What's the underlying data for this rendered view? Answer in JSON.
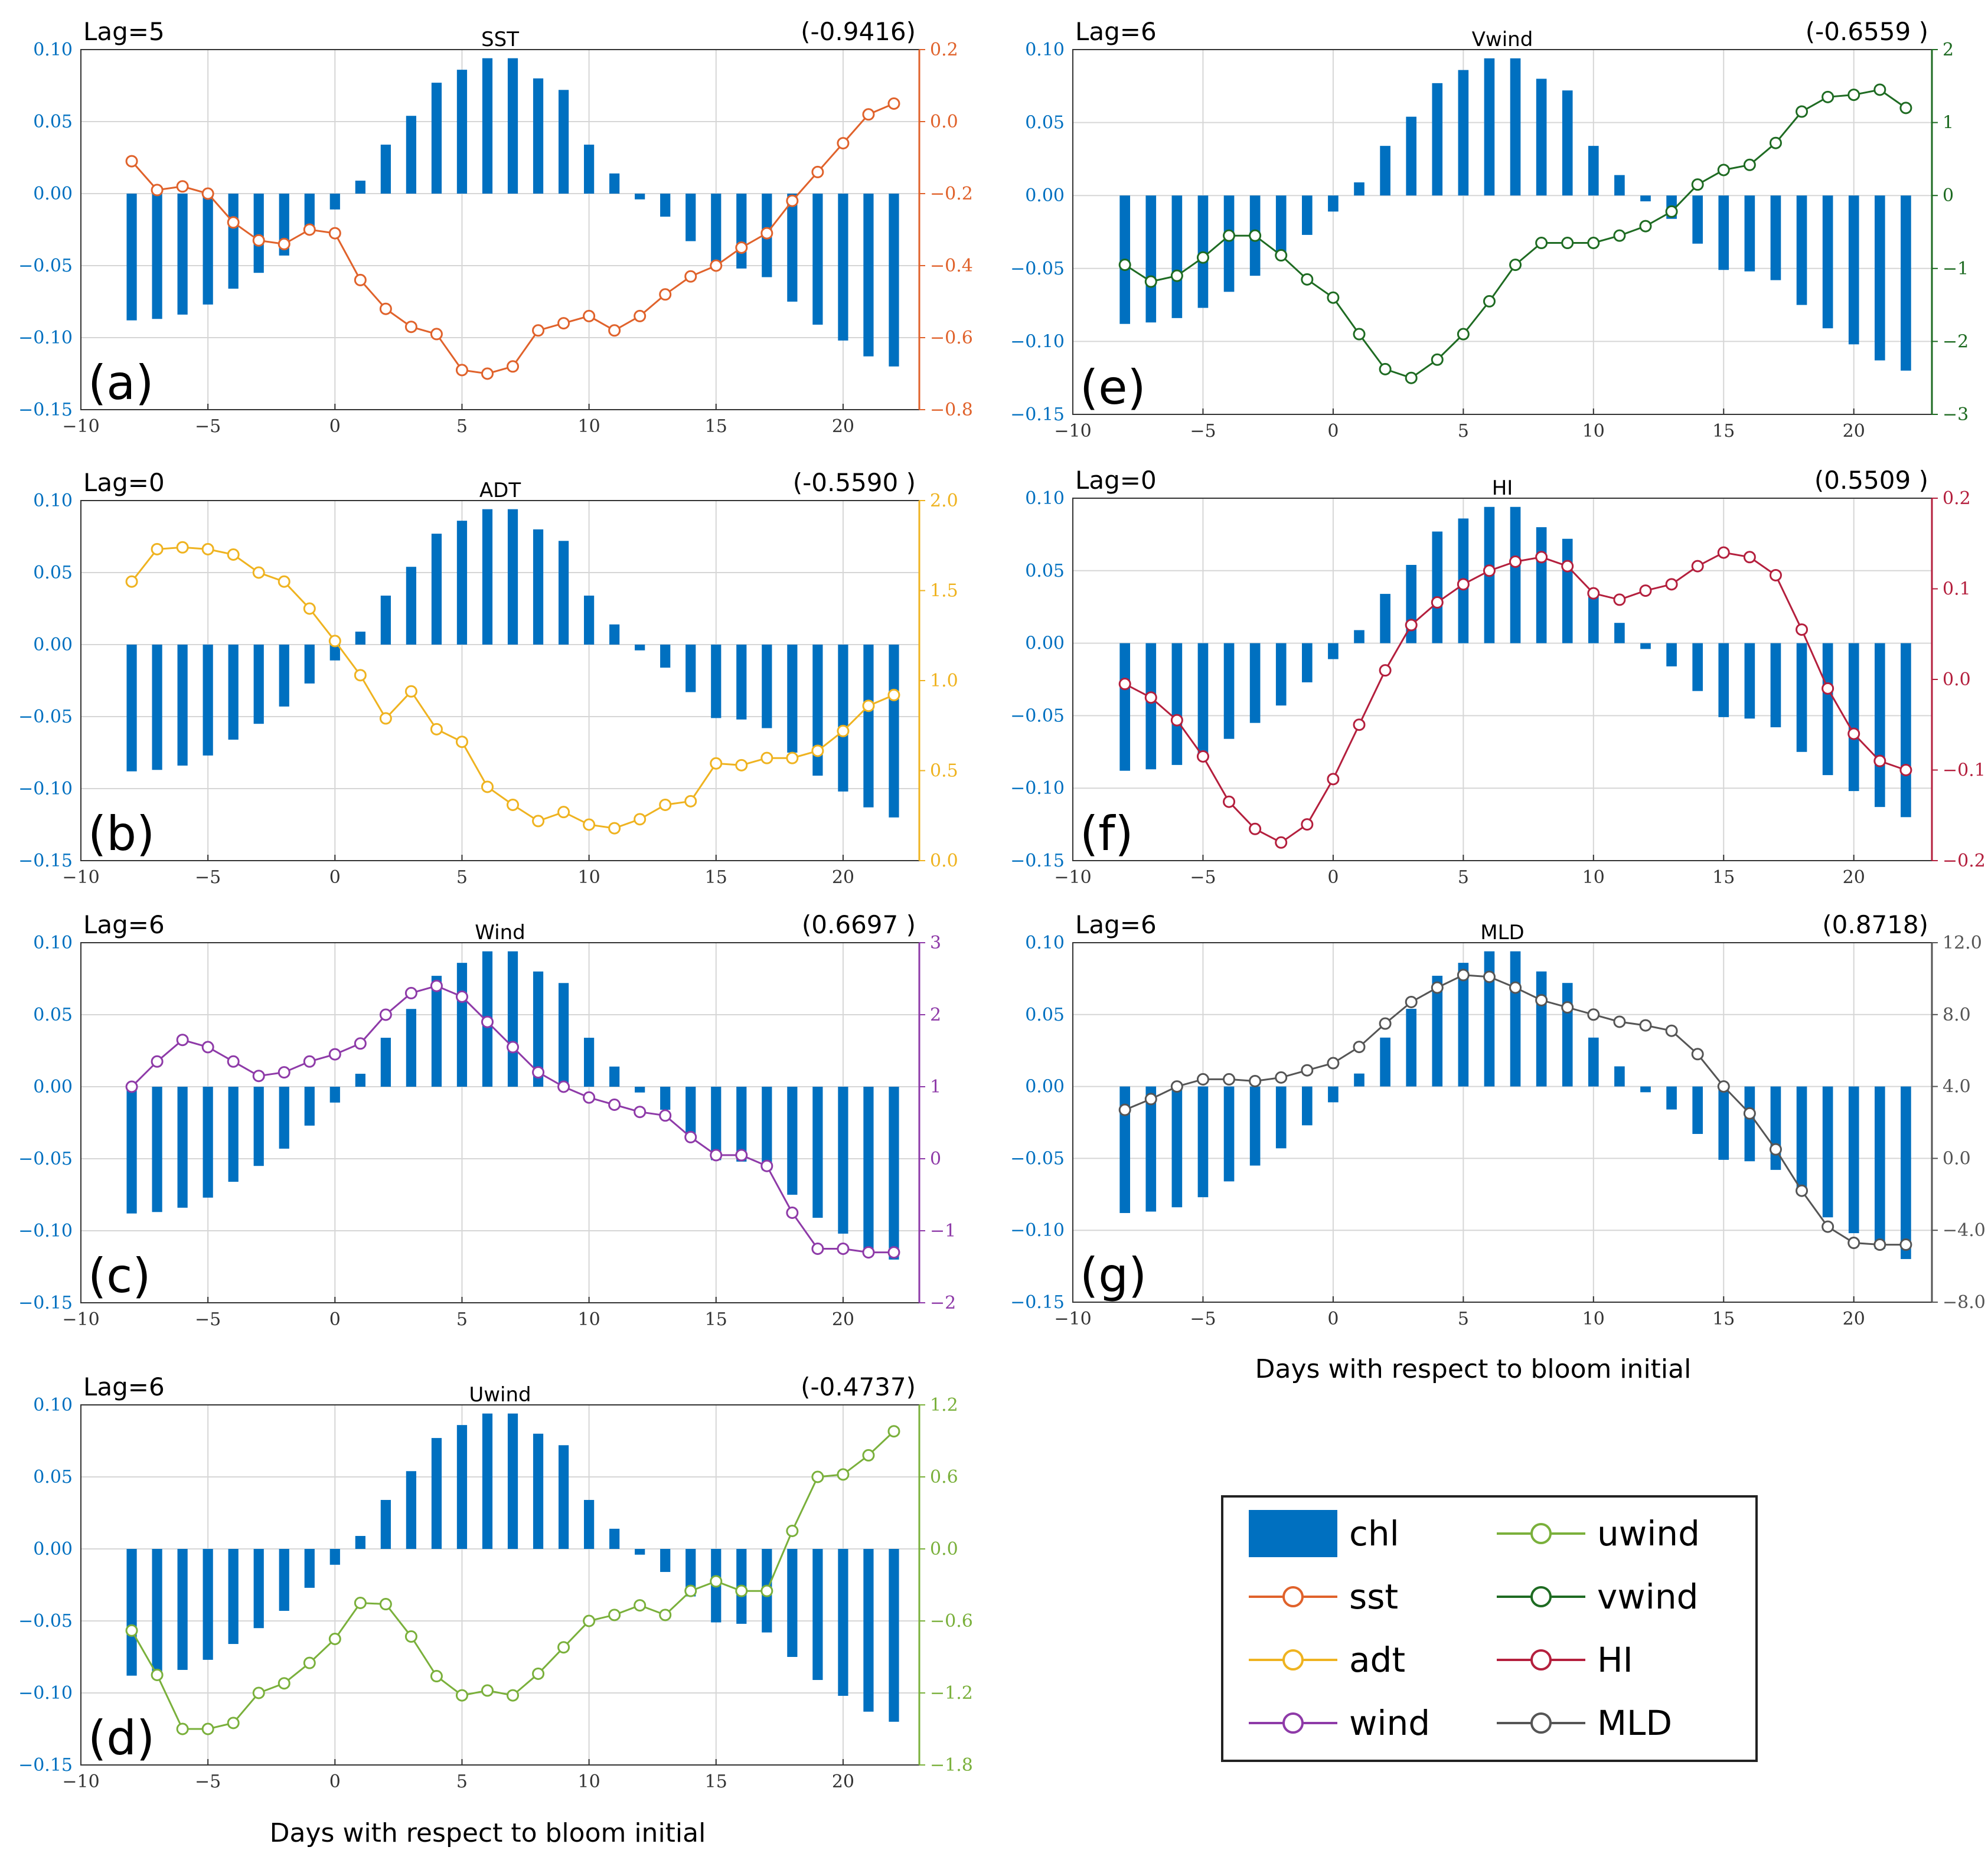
{
  "figure_xlabel": "Days with respect to bloom initial",
  "chl_color": "#0070C0",
  "legend": {
    "items": [
      {
        "key": "chl",
        "label": "chl",
        "kind": "bar",
        "color": "#0070C0"
      },
      {
        "key": "uwind",
        "label": "uwind",
        "kind": "line",
        "color": "#7AB03B"
      },
      {
        "key": "sst",
        "label": "sst",
        "kind": "line",
        "color": "#E0622B"
      },
      {
        "key": "vwind",
        "label": "vwind",
        "kind": "line",
        "color": "#1E6B22"
      },
      {
        "key": "adt",
        "label": "adt",
        "kind": "line",
        "color": "#EFB320"
      },
      {
        "key": "HI",
        "label": "HI",
        "kind": "line",
        "color": "#B41F3D"
      },
      {
        "key": "wind",
        "label": "wind",
        "kind": "line",
        "color": "#8E3AA8"
      },
      {
        "key": "MLD",
        "label": "MLD",
        "kind": "line",
        "color": "#555555"
      }
    ]
  },
  "chart_data": [
    {
      "id": "a",
      "panel_label": "(a)",
      "lag": "Lag=5",
      "title": "SST",
      "corr": "(-0.9416)",
      "type": "bar+line",
      "x": [
        -8,
        -7,
        -6,
        -5,
        -4,
        -3,
        -2,
        -1,
        0,
        1,
        2,
        3,
        4,
        5,
        6,
        7,
        8,
        9,
        10,
        11,
        12,
        13,
        14,
        15,
        16,
        17,
        18,
        19,
        20,
        21,
        22
      ],
      "chl": [
        -0.088,
        -0.087,
        -0.084,
        -0.077,
        -0.066,
        -0.055,
        -0.043,
        -0.027,
        -0.011,
        0.009,
        0.034,
        0.054,
        0.077,
        0.086,
        0.094,
        0.094,
        0.08,
        0.072,
        0.034,
        0.014,
        -0.004,
        -0.016,
        -0.033,
        -0.051,
        -0.052,
        -0.058,
        -0.075,
        -0.091,
        -0.102,
        -0.113,
        -0.12
      ],
      "xlim": [
        -10,
        23
      ],
      "xticks": [
        -10,
        -5,
        0,
        5,
        10,
        15,
        20
      ],
      "ylim_left": [
        -0.15,
        0.1
      ],
      "yticks_left": [
        "0.10",
        "0.05",
        "0.00",
        "-0.05",
        "-0.10",
        "-0.15"
      ],
      "series": {
        "name": "sst",
        "color": "#E0622B",
        "values": [
          -0.11,
          -0.19,
          -0.18,
          -0.2,
          -0.28,
          -0.33,
          -0.34,
          -0.3,
          -0.31,
          -0.44,
          -0.52,
          -0.57,
          -0.59,
          -0.69,
          -0.7,
          -0.68,
          -0.58,
          -0.56,
          -0.54,
          -0.58,
          -0.54,
          -0.48,
          -0.43,
          -0.4,
          -0.35,
          -0.31,
          -0.22,
          -0.14,
          -0.06,
          0.02,
          0.05
        ]
      },
      "ylim_right": [
        -0.8,
        0.2
      ],
      "yticks_right": [
        "0.2",
        "0.0",
        "-0.2",
        "-0.4",
        "-0.6",
        "-0.8"
      ]
    },
    {
      "id": "b",
      "panel_label": "(b)",
      "lag": "Lag=0",
      "title": "ADT",
      "corr": "(-0.5590 )",
      "type": "bar+line",
      "x": [
        -8,
        -7,
        -6,
        -5,
        -4,
        -3,
        -2,
        -1,
        0,
        1,
        2,
        3,
        4,
        5,
        6,
        7,
        8,
        9,
        10,
        11,
        12,
        13,
        14,
        15,
        16,
        17,
        18,
        19,
        20,
        21,
        22
      ],
      "chl": [
        -0.088,
        -0.087,
        -0.084,
        -0.077,
        -0.066,
        -0.055,
        -0.043,
        -0.027,
        -0.011,
        0.009,
        0.034,
        0.054,
        0.077,
        0.086,
        0.094,
        0.094,
        0.08,
        0.072,
        0.034,
        0.014,
        -0.004,
        -0.016,
        -0.033,
        -0.051,
        -0.052,
        -0.058,
        -0.075,
        -0.091,
        -0.102,
        -0.113,
        -0.12
      ],
      "xlim": [
        -10,
        23
      ],
      "xticks": [
        -10,
        -5,
        0,
        5,
        10,
        15,
        20
      ],
      "ylim_left": [
        -0.15,
        0.1
      ],
      "yticks_left": [
        "0.10",
        "0.05",
        "0.00",
        "-0.05",
        "-0.10",
        "-0.15"
      ],
      "series": {
        "name": "adt",
        "color": "#EFB320",
        "values": [
          1.55,
          1.73,
          1.74,
          1.73,
          1.7,
          1.6,
          1.55,
          1.4,
          1.22,
          1.03,
          0.79,
          0.94,
          0.73,
          0.66,
          0.41,
          0.31,
          0.22,
          0.27,
          0.2,
          0.18,
          0.23,
          0.31,
          0.33,
          0.54,
          0.53,
          0.57,
          0.57,
          0.61,
          0.72,
          0.86,
          0.92
        ]
      },
      "ylim_right": [
        0.0,
        2.0
      ],
      "yticks_right": [
        "2.0",
        "1.5",
        "1.0",
        "0.5",
        "0.0"
      ]
    },
    {
      "id": "c",
      "panel_label": "(c)",
      "lag": "Lag=6",
      "title": "Wind",
      "corr": "(0.6697 )",
      "type": "bar+line",
      "x": [
        -8,
        -7,
        -6,
        -5,
        -4,
        -3,
        -2,
        -1,
        0,
        1,
        2,
        3,
        4,
        5,
        6,
        7,
        8,
        9,
        10,
        11,
        12,
        13,
        14,
        15,
        16,
        17,
        18,
        19,
        20,
        21,
        22
      ],
      "chl": [
        -0.088,
        -0.087,
        -0.084,
        -0.077,
        -0.066,
        -0.055,
        -0.043,
        -0.027,
        -0.011,
        0.009,
        0.034,
        0.054,
        0.077,
        0.086,
        0.094,
        0.094,
        0.08,
        0.072,
        0.034,
        0.014,
        -0.004,
        -0.016,
        -0.033,
        -0.051,
        -0.052,
        -0.058,
        -0.075,
        -0.091,
        -0.102,
        -0.113,
        -0.12
      ],
      "xlim": [
        -10,
        23
      ],
      "xticks": [
        -10,
        -5,
        0,
        5,
        10,
        15,
        20
      ],
      "ylim_left": [
        -0.15,
        0.1
      ],
      "yticks_left": [
        "0.10",
        "0.05",
        "0.00",
        "-0.05",
        "-0.10",
        "-0.15"
      ],
      "series": {
        "name": "wind",
        "color": "#8E3AA8",
        "values": [
          1.0,
          1.35,
          1.65,
          1.55,
          1.35,
          1.15,
          1.2,
          1.35,
          1.45,
          1.6,
          2.0,
          2.3,
          2.4,
          2.25,
          1.9,
          1.55,
          1.2,
          1.0,
          0.85,
          0.75,
          0.65,
          0.6,
          0.3,
          0.05,
          0.05,
          -0.1,
          -0.75,
          -1.25,
          -1.25,
          -1.3,
          -1.3
        ]
      },
      "ylim_right": [
        -2,
        3
      ],
      "yticks_right": [
        "3",
        "2",
        "1",
        "0",
        "-1",
        "-2"
      ]
    },
    {
      "id": "d",
      "panel_label": "(d)",
      "lag": "Lag=6",
      "title": "Uwind",
      "corr": "(-0.4737)",
      "type": "bar+line",
      "x": [
        -8,
        -7,
        -6,
        -5,
        -4,
        -3,
        -2,
        -1,
        0,
        1,
        2,
        3,
        4,
        5,
        6,
        7,
        8,
        9,
        10,
        11,
        12,
        13,
        14,
        15,
        16,
        17,
        18,
        19,
        20,
        21,
        22
      ],
      "chl": [
        -0.088,
        -0.087,
        -0.084,
        -0.077,
        -0.066,
        -0.055,
        -0.043,
        -0.027,
        -0.011,
        0.009,
        0.034,
        0.054,
        0.077,
        0.086,
        0.094,
        0.094,
        0.08,
        0.072,
        0.034,
        0.014,
        -0.004,
        -0.016,
        -0.033,
        -0.051,
        -0.052,
        -0.058,
        -0.075,
        -0.091,
        -0.102,
        -0.113,
        -0.12
      ],
      "xlim": [
        -10,
        23
      ],
      "xticks": [
        -10,
        -5,
        0,
        5,
        10,
        15,
        20
      ],
      "ylim_left": [
        -0.15,
        0.1
      ],
      "yticks_left": [
        "0.10",
        "0.05",
        "0.00",
        "-0.05",
        "-0.10",
        "-0.15"
      ],
      "series": {
        "name": "uwind",
        "color": "#7AB03B",
        "values": [
          -0.68,
          -1.05,
          -1.5,
          -1.5,
          -1.45,
          -1.2,
          -1.12,
          -0.95,
          -0.75,
          -0.45,
          -0.46,
          -0.73,
          -1.06,
          -1.22,
          -1.18,
          -1.22,
          -1.04,
          -0.82,
          -0.6,
          -0.55,
          -0.47,
          -0.55,
          -0.35,
          -0.27,
          -0.35,
          -0.35,
          0.15,
          0.6,
          0.62,
          0.78,
          0.98
        ]
      },
      "ylim_right": [
        -1.8,
        1.2
      ],
      "yticks_right": [
        "1.2",
        "0.6",
        "0.0",
        "-0.6",
        "-1.2",
        "-1.8"
      ]
    },
    {
      "id": "e",
      "panel_label": "(e)",
      "lag": "Lag=6",
      "title": "Vwind",
      "corr": "(-0.6559 )",
      "type": "bar+line",
      "x": [
        -8,
        -7,
        -6,
        -5,
        -4,
        -3,
        -2,
        -1,
        0,
        1,
        2,
        3,
        4,
        5,
        6,
        7,
        8,
        9,
        10,
        11,
        12,
        13,
        14,
        15,
        16,
        17,
        18,
        19,
        20,
        21,
        22
      ],
      "chl": [
        -0.088,
        -0.087,
        -0.084,
        -0.077,
        -0.066,
        -0.055,
        -0.043,
        -0.027,
        -0.011,
        0.009,
        0.034,
        0.054,
        0.077,
        0.086,
        0.094,
        0.094,
        0.08,
        0.072,
        0.034,
        0.014,
        -0.004,
        -0.016,
        -0.033,
        -0.051,
        -0.052,
        -0.058,
        -0.075,
        -0.091,
        -0.102,
        -0.113,
        -0.12
      ],
      "xlim": [
        -10,
        23
      ],
      "xticks": [
        -10,
        -5,
        0,
        5,
        10,
        15,
        20
      ],
      "ylim_left": [
        -0.15,
        0.1
      ],
      "yticks_left": [
        "0.10",
        "0.05",
        "0.00",
        "-0.05",
        "-0.10",
        "-0.15"
      ],
      "series": {
        "name": "vwind",
        "color": "#1E6B22",
        "values": [
          -0.95,
          -1.18,
          -1.1,
          -0.85,
          -0.55,
          -0.55,
          -0.82,
          -1.15,
          -1.4,
          -1.9,
          -2.38,
          -2.5,
          -2.25,
          -1.9,
          -1.45,
          -0.95,
          -0.65,
          -0.65,
          -0.65,
          -0.55,
          -0.42,
          -0.22,
          0.15,
          0.35,
          0.42,
          0.72,
          1.15,
          1.35,
          1.38,
          1.45,
          1.2
        ]
      },
      "ylim_right": [
        -3,
        2
      ],
      "yticks_right": [
        "2",
        "1",
        "0",
        "-1",
        "-2",
        "-3"
      ]
    },
    {
      "id": "f",
      "panel_label": "(f)",
      "lag": "Lag=0",
      "title": "HI",
      "corr": "(0.5509 )",
      "type": "bar+line",
      "x": [
        -8,
        -7,
        -6,
        -5,
        -4,
        -3,
        -2,
        -1,
        0,
        1,
        2,
        3,
        4,
        5,
        6,
        7,
        8,
        9,
        10,
        11,
        12,
        13,
        14,
        15,
        16,
        17,
        18,
        19,
        20,
        21,
        22
      ],
      "chl": [
        -0.088,
        -0.087,
        -0.084,
        -0.077,
        -0.066,
        -0.055,
        -0.043,
        -0.027,
        -0.011,
        0.009,
        0.034,
        0.054,
        0.077,
        0.086,
        0.094,
        0.094,
        0.08,
        0.072,
        0.034,
        0.014,
        -0.004,
        -0.016,
        -0.033,
        -0.051,
        -0.052,
        -0.058,
        -0.075,
        -0.091,
        -0.102,
        -0.113,
        -0.12
      ],
      "xlim": [
        -10,
        23
      ],
      "xticks": [
        -10,
        -5,
        0,
        5,
        10,
        15,
        20
      ],
      "ylim_left": [
        -0.15,
        0.1
      ],
      "yticks_left": [
        "0.10",
        "0.05",
        "0.00",
        "-0.05",
        "-0.10",
        "-0.15"
      ],
      "series": {
        "name": "HI",
        "color": "#B41F3D",
        "values": [
          -0.005,
          -0.02,
          -0.045,
          -0.085,
          -0.135,
          -0.165,
          -0.18,
          -0.16,
          -0.11,
          -0.05,
          0.01,
          0.06,
          0.085,
          0.105,
          0.12,
          0.13,
          0.135,
          0.125,
          0.095,
          0.088,
          0.098,
          0.105,
          0.125,
          0.14,
          0.135,
          0.115,
          0.055,
          -0.01,
          -0.06,
          -0.09,
          -0.1
        ]
      },
      "ylim_right": [
        -0.2,
        0.2
      ],
      "yticks_right": [
        "0.2",
        "0.1",
        "0.0",
        "-0.1",
        "-0.2"
      ]
    },
    {
      "id": "g",
      "panel_label": "(g)",
      "lag": "Lag=6",
      "title": "MLD",
      "corr": "(0.8718)",
      "type": "bar+line",
      "x": [
        -8,
        -7,
        -6,
        -5,
        -4,
        -3,
        -2,
        -1,
        0,
        1,
        2,
        3,
        4,
        5,
        6,
        7,
        8,
        9,
        10,
        11,
        12,
        13,
        14,
        15,
        16,
        17,
        18,
        19,
        20,
        21,
        22
      ],
      "chl": [
        -0.088,
        -0.087,
        -0.084,
        -0.077,
        -0.066,
        -0.055,
        -0.043,
        -0.027,
        -0.011,
        0.009,
        0.034,
        0.054,
        0.077,
        0.086,
        0.094,
        0.094,
        0.08,
        0.072,
        0.034,
        0.014,
        -0.004,
        -0.016,
        -0.033,
        -0.051,
        -0.052,
        -0.058,
        -0.075,
        -0.091,
        -0.102,
        -0.113,
        -0.12
      ],
      "xlim": [
        -10,
        23
      ],
      "xticks": [
        -10,
        -5,
        0,
        5,
        10,
        15,
        20
      ],
      "ylim_left": [
        -0.15,
        0.1
      ],
      "yticks_left": [
        "0.10",
        "0.05",
        "0.00",
        "-0.05",
        "-0.10",
        "-0.15"
      ],
      "series": {
        "name": "MLD",
        "color": "#555555",
        "values": [
          2.7,
          3.3,
          4.0,
          4.4,
          4.4,
          4.3,
          4.5,
          4.9,
          5.3,
          6.2,
          7.5,
          8.7,
          9.5,
          10.2,
          10.1,
          9.5,
          8.8,
          8.4,
          8.0,
          7.6,
          7.4,
          7.1,
          5.8,
          4.0,
          2.5,
          0.5,
          -1.8,
          -3.8,
          -4.7,
          -4.8,
          -4.8
        ]
      },
      "ylim_right": [
        -8.0,
        12.0
      ],
      "yticks_right": [
        "12.0",
        "8.0",
        "4.0",
        "0.0",
        "-4.0",
        "-8.0"
      ]
    }
  ]
}
